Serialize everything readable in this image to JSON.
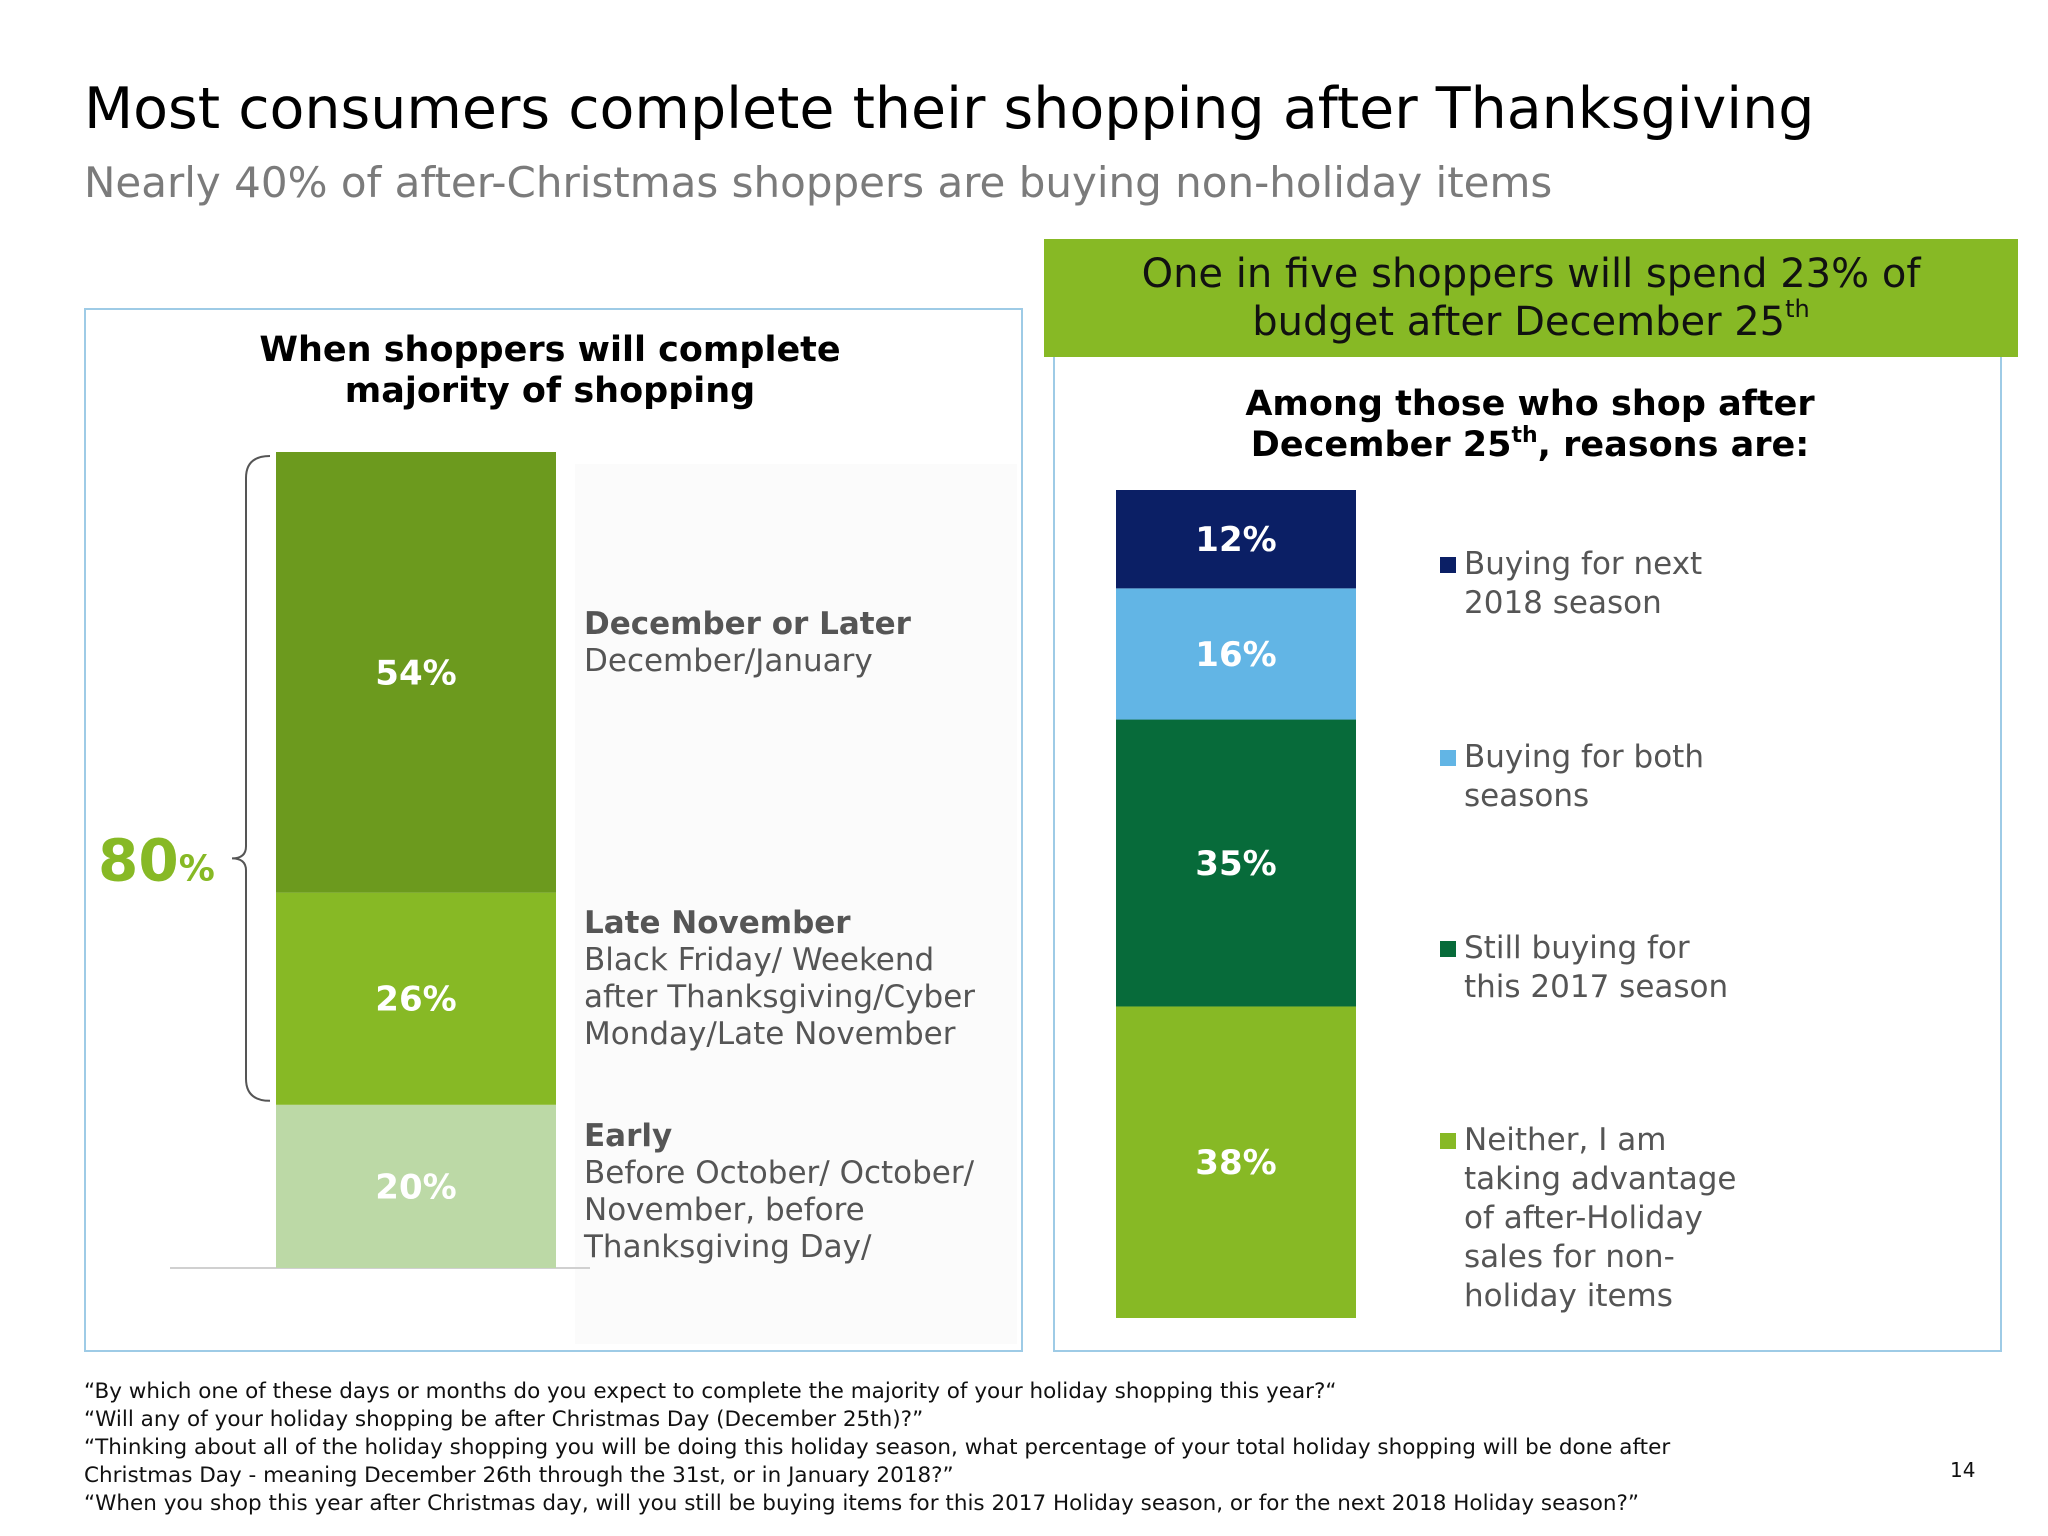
{
  "slide": {
    "title": "Most consumers complete their shopping after Thanksgiving",
    "subtitle": "Nearly 40% of after-Christmas shoppers are buying non-holiday items",
    "callout_line1": "One in five shoppers will spend 23% of",
    "callout_line2": "budget after December 25",
    "callout_sup": "th",
    "page_number": "14"
  },
  "left_chart": {
    "title_line1": "When shoppers will complete",
    "title_line2": "majority of shopping",
    "total_value": "80",
    "total_unit": "%"
  },
  "right_chart": {
    "title_line1": "Among those who shop after",
    "title_line2_prefix": "December 25",
    "title_line2_sup": "th",
    "title_line2_suffix": ", reasons are:"
  },
  "chart_data": [
    {
      "type": "bar",
      "stacked": true,
      "title": "When shoppers will complete majority of shopping",
      "bracket_total": "80%",
      "segments": [
        {
          "label": "20%",
          "value": 20,
          "color": "#bcd9a6",
          "name": "Early",
          "detail": "Before October/ October/ November, before Thanksgiving Day/"
        },
        {
          "label": "26%",
          "value": 26,
          "color": "#87b925",
          "name": "Late November",
          "detail": "Black Friday/ Weekend after Thanksgiving/Cyber Monday/Late November"
        },
        {
          "label": "54%",
          "value": 54,
          "color": "#6c9a1e",
          "name": "December or Later",
          "detail": "December/January"
        }
      ]
    },
    {
      "type": "bar",
      "stacked": true,
      "title": "Among those who shop after December 25th, reasons are:",
      "segments": [
        {
          "label": "38%",
          "value": 38,
          "color": "#87b925",
          "name": "Neither, I am taking advantage of after-Holiday sales for non-holiday items"
        },
        {
          "label": "35%",
          "value": 35,
          "color": "#076b3a",
          "name": "Still buying for this 2017 season"
        },
        {
          "label": "16%",
          "value": 16,
          "color": "#62b5e5",
          "name": "Buying for both seasons"
        },
        {
          "label": "12%",
          "value": 12,
          "color": "#0b1f65",
          "name": "Buying for next 2018 season"
        }
      ]
    }
  ],
  "footnotes": [
    "“By which one of these days or months do you expect to complete the majority of your holiday shopping this year?“",
    "“Will any of your holiday shopping be after Christmas Day (December 25th)?”",
    "“Thinking about all of the holiday shopping you will be doing this holiday season, what percentage of your total holiday shopping will be done after",
    "Christmas Day - meaning December 26th through the 31st, or in January 2018?”",
    "“When you shop this year after Christmas day, will you still be buying items for this 2017 Holiday season, or for the next 2018 Holiday season?”"
  ]
}
